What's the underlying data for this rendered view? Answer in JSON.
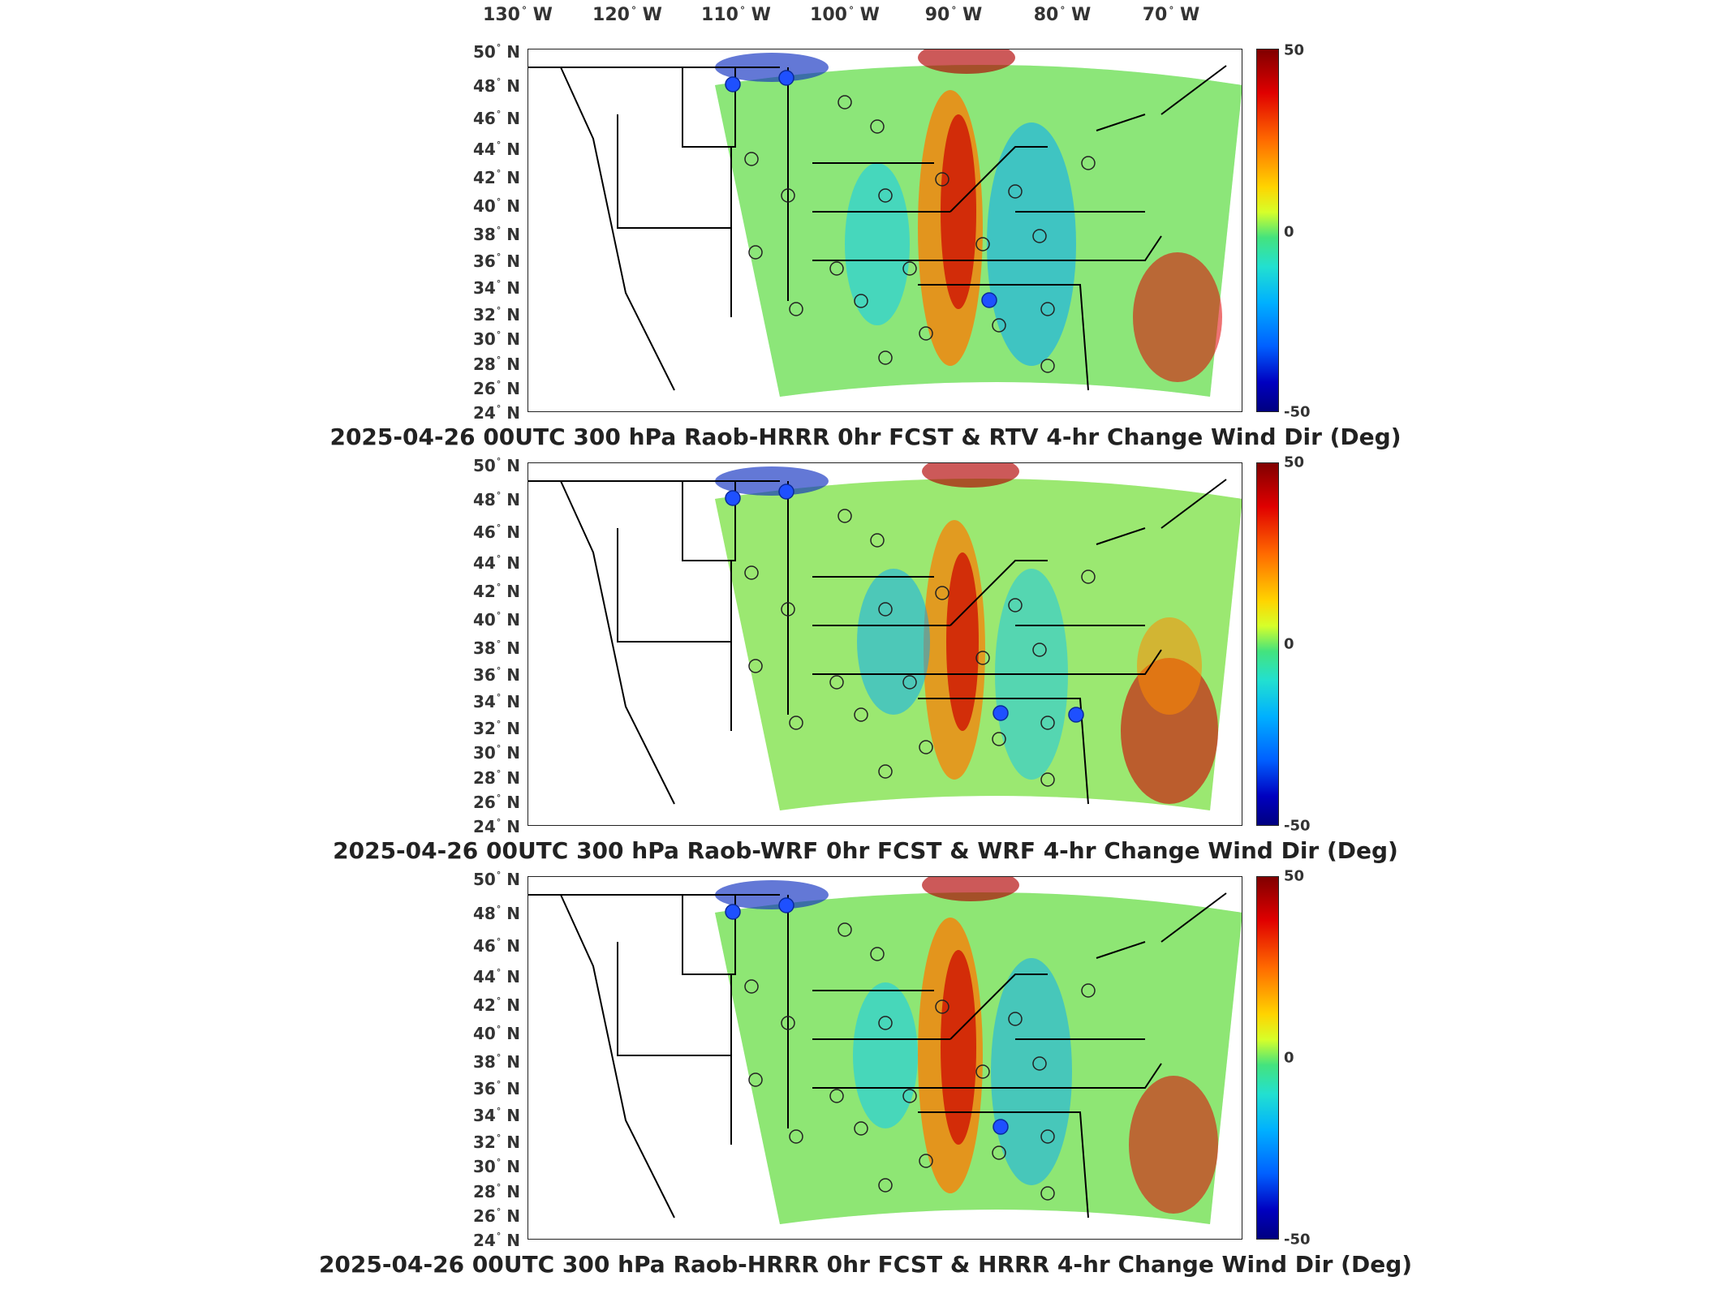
{
  "longitude_labels": [
    {
      "deg": "130",
      "dir": "W"
    },
    {
      "deg": "120",
      "dir": "W"
    },
    {
      "deg": "110",
      "dir": "W"
    },
    {
      "deg": "100",
      "dir": "W"
    },
    {
      "deg": "90",
      "dir": "W"
    },
    {
      "deg": "80",
      "dir": "W"
    },
    {
      "deg": "70",
      "dir": "W"
    }
  ],
  "latitude_labels": [
    {
      "deg": "50",
      "dir": "N"
    },
    {
      "deg": "48",
      "dir": "N"
    },
    {
      "deg": "46",
      "dir": "N"
    },
    {
      "deg": "44",
      "dir": "N"
    },
    {
      "deg": "42",
      "dir": "N"
    },
    {
      "deg": "40",
      "dir": "N"
    },
    {
      "deg": "38",
      "dir": "N"
    },
    {
      "deg": "36",
      "dir": "N"
    },
    {
      "deg": "34",
      "dir": "N"
    },
    {
      "deg": "32",
      "dir": "N"
    },
    {
      "deg": "30",
      "dir": "N"
    },
    {
      "deg": "28",
      "dir": "N"
    },
    {
      "deg": "26",
      "dir": "N"
    },
    {
      "deg": "24",
      "dir": "N"
    }
  ],
  "colorbar": {
    "max_label": "50",
    "mid_label": "0",
    "min_label": "-50",
    "colors": [
      "#800000",
      "#e00000",
      "#ff6a00",
      "#ffd400",
      "#44e37e",
      "#00b0ff",
      "#0000c0",
      "#000080"
    ]
  },
  "panels": [
    {
      "caption": "2025-04-26 00UTC 300 hPa Raob-HRRR 0hr FCST & RTV 4-hr Change Wind Dir (Deg)"
    },
    {
      "caption": "2025-04-26 00UTC 300 hPa Raob-WRF 0hr FCST & WRF 4-hr Change Wind Dir (Deg)"
    },
    {
      "caption": "2025-04-26 00UTC 300 hPa Raob-HRRR 0hr FCST & HRRR 4-hr Change Wind Dir (Deg)"
    }
  ]
}
